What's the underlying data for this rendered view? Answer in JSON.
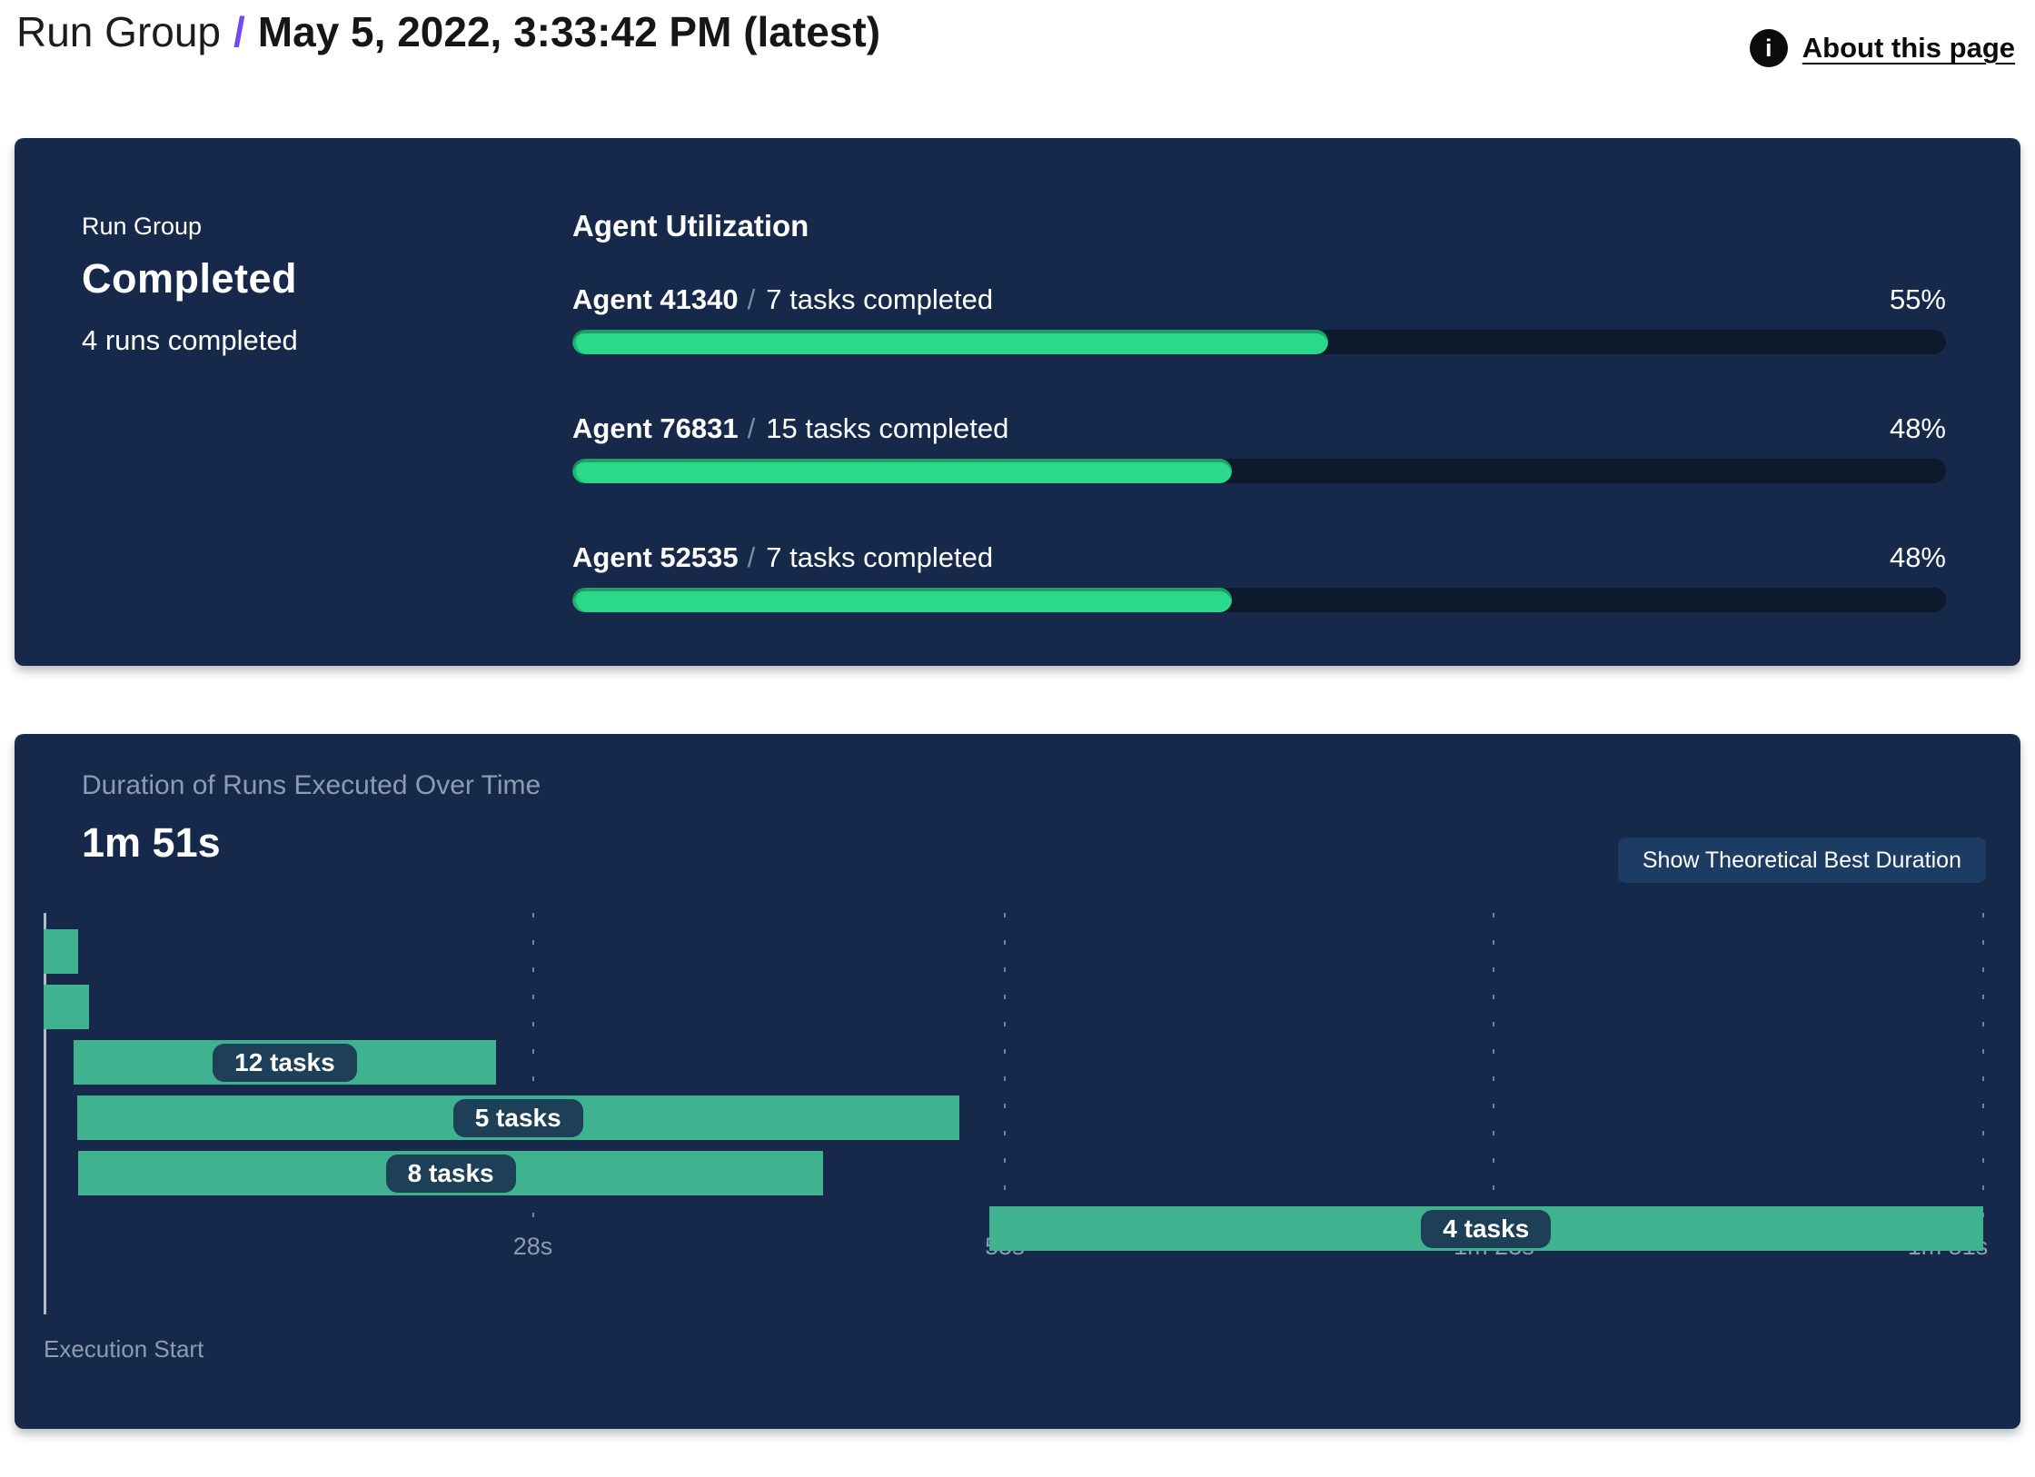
{
  "header": {
    "breadcrumb_root": "Run Group",
    "separator": "/",
    "title": "May 5, 2022, 3:33:42 PM (latest)",
    "about_link": "About this page",
    "icons": {
      "about": "info-icon",
      "info_glyph": "i"
    },
    "accent_color": "#7448f5"
  },
  "summary": {
    "label": "Run Group",
    "status": "Completed",
    "runs_completed": "4 runs completed"
  },
  "utilization": {
    "heading": "Agent Utilization",
    "fill_color": "#2bd98a",
    "track_color": "#0c1a2c",
    "agents": [
      {
        "name": "Agent 41340",
        "separator": "/",
        "detail": "7 tasks completed",
        "percent": 55,
        "percent_label": "55%"
      },
      {
        "name": "Agent 76831",
        "separator": "/",
        "detail": "15 tasks completed",
        "percent": 48,
        "percent_label": "48%"
      },
      {
        "name": "Agent 52535",
        "separator": "/",
        "detail": "7 tasks completed",
        "percent": 48,
        "percent_label": "48%"
      }
    ]
  },
  "duration_panel": {
    "title": "Duration of Runs Executed Over Time",
    "total_duration": "1m 51s",
    "button_label": "Show Theoretical Best Duration",
    "axis_label": "Execution Start"
  },
  "chart_data": {
    "type": "gantt",
    "title": "Duration of Runs Executed Over Time",
    "total_duration_label": "1m 51s",
    "total_duration_s": 111,
    "bar_color": "#3fb390",
    "label_pill_color": "#1e3f58",
    "grid": "dashed-vertical",
    "x_axis_start_label": "Execution Start",
    "x_ticks": [
      {
        "label": "28s",
        "s": 28
      },
      {
        "label": "55s",
        "s": 55
      },
      {
        "label": "1m 23s",
        "s": 83
      },
      {
        "label": "1m 51s",
        "s": 111
      }
    ],
    "bars": [
      {
        "start_s": 0,
        "end_s": 2,
        "label": ""
      },
      {
        "start_s": 0,
        "end_s": 2.6,
        "label": ""
      },
      {
        "start_s": 1.7,
        "end_s": 25.9,
        "label": "12 tasks"
      },
      {
        "start_s": 1.9,
        "end_s": 52.4,
        "label": "5 tasks"
      },
      {
        "start_s": 2.0,
        "end_s": 44.6,
        "label": "8 tasks"
      },
      {
        "start_s": 54.1,
        "end_s": 111,
        "label": "4 tasks"
      }
    ]
  }
}
